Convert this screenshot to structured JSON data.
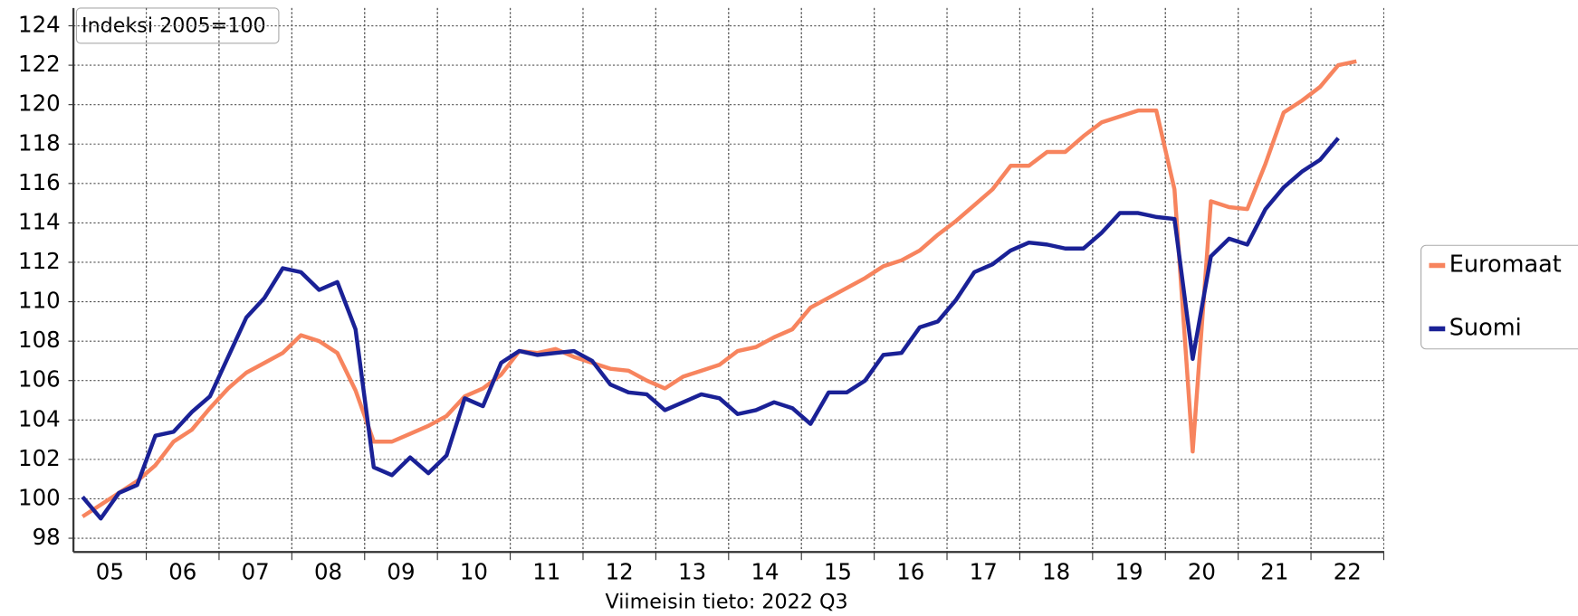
{
  "chart_data": {
    "type": "line",
    "annotation": "Indeksi 2005=100",
    "footer": "Viimeisin tieto: 2022 Q3",
    "x_labels": [
      "05",
      "06",
      "07",
      "08",
      "09",
      "10",
      "11",
      "12",
      "13",
      "14",
      "15",
      "16",
      "17",
      "18",
      "19",
      "20",
      "21",
      "22"
    ],
    "series": [
      {
        "name": "Euromaat",
        "color": "#f7845e",
        "values": [
          99.1,
          99.7,
          100.3,
          100.9,
          101.7,
          102.9,
          103.5,
          104.6,
          105.6,
          106.4,
          106.9,
          107.4,
          108.3,
          108.0,
          107.4,
          105.5,
          102.9,
          102.9,
          103.3,
          103.7,
          104.2,
          105.2,
          105.6,
          106.3,
          107.5,
          107.4,
          107.6,
          107.2,
          106.9,
          106.6,
          106.5,
          106.0,
          105.6,
          106.2,
          106.5,
          106.8,
          107.5,
          107.7,
          108.2,
          108.6,
          109.7,
          110.2,
          110.7,
          111.2,
          111.8,
          112.1,
          112.6,
          113.4,
          114.1,
          114.9,
          115.7,
          116.9,
          116.9,
          117.6,
          117.6,
          118.4,
          119.1,
          119.4,
          119.7,
          119.7,
          115.7,
          102.4,
          115.1,
          114.8,
          114.7,
          117.0,
          119.6,
          120.2,
          120.9,
          122.0,
          122.2
        ]
      },
      {
        "name": "Suomi",
        "color": "#1a2196",
        "values": [
          100.1,
          99.0,
          100.3,
          100.7,
          103.2,
          103.4,
          104.4,
          105.2,
          107.2,
          109.2,
          110.2,
          111.7,
          111.5,
          110.6,
          111.0,
          108.6,
          101.6,
          101.2,
          102.1,
          101.3,
          102.2,
          105.1,
          104.7,
          106.9,
          107.5,
          107.3,
          107.4,
          107.5,
          107.0,
          105.8,
          105.4,
          105.3,
          104.5,
          104.9,
          105.3,
          105.1,
          104.3,
          104.5,
          104.9,
          104.6,
          103.8,
          105.4,
          105.4,
          106.0,
          107.3,
          107.4,
          108.7,
          109.0,
          110.1,
          111.5,
          111.9,
          112.6,
          113.0,
          112.9,
          112.7,
          112.7,
          113.5,
          114.5,
          114.5,
          114.3,
          114.2,
          107.1,
          112.3,
          113.2,
          112.9,
          114.7,
          115.8,
          116.6,
          117.2,
          118.3,
          null
        ]
      }
    ],
    "ylim": [
      97.3,
      124.9
    ],
    "yticks": [
      98,
      100,
      102,
      104,
      106,
      108,
      110,
      112,
      114,
      116,
      118,
      120,
      122,
      124
    ],
    "grid": true
  }
}
